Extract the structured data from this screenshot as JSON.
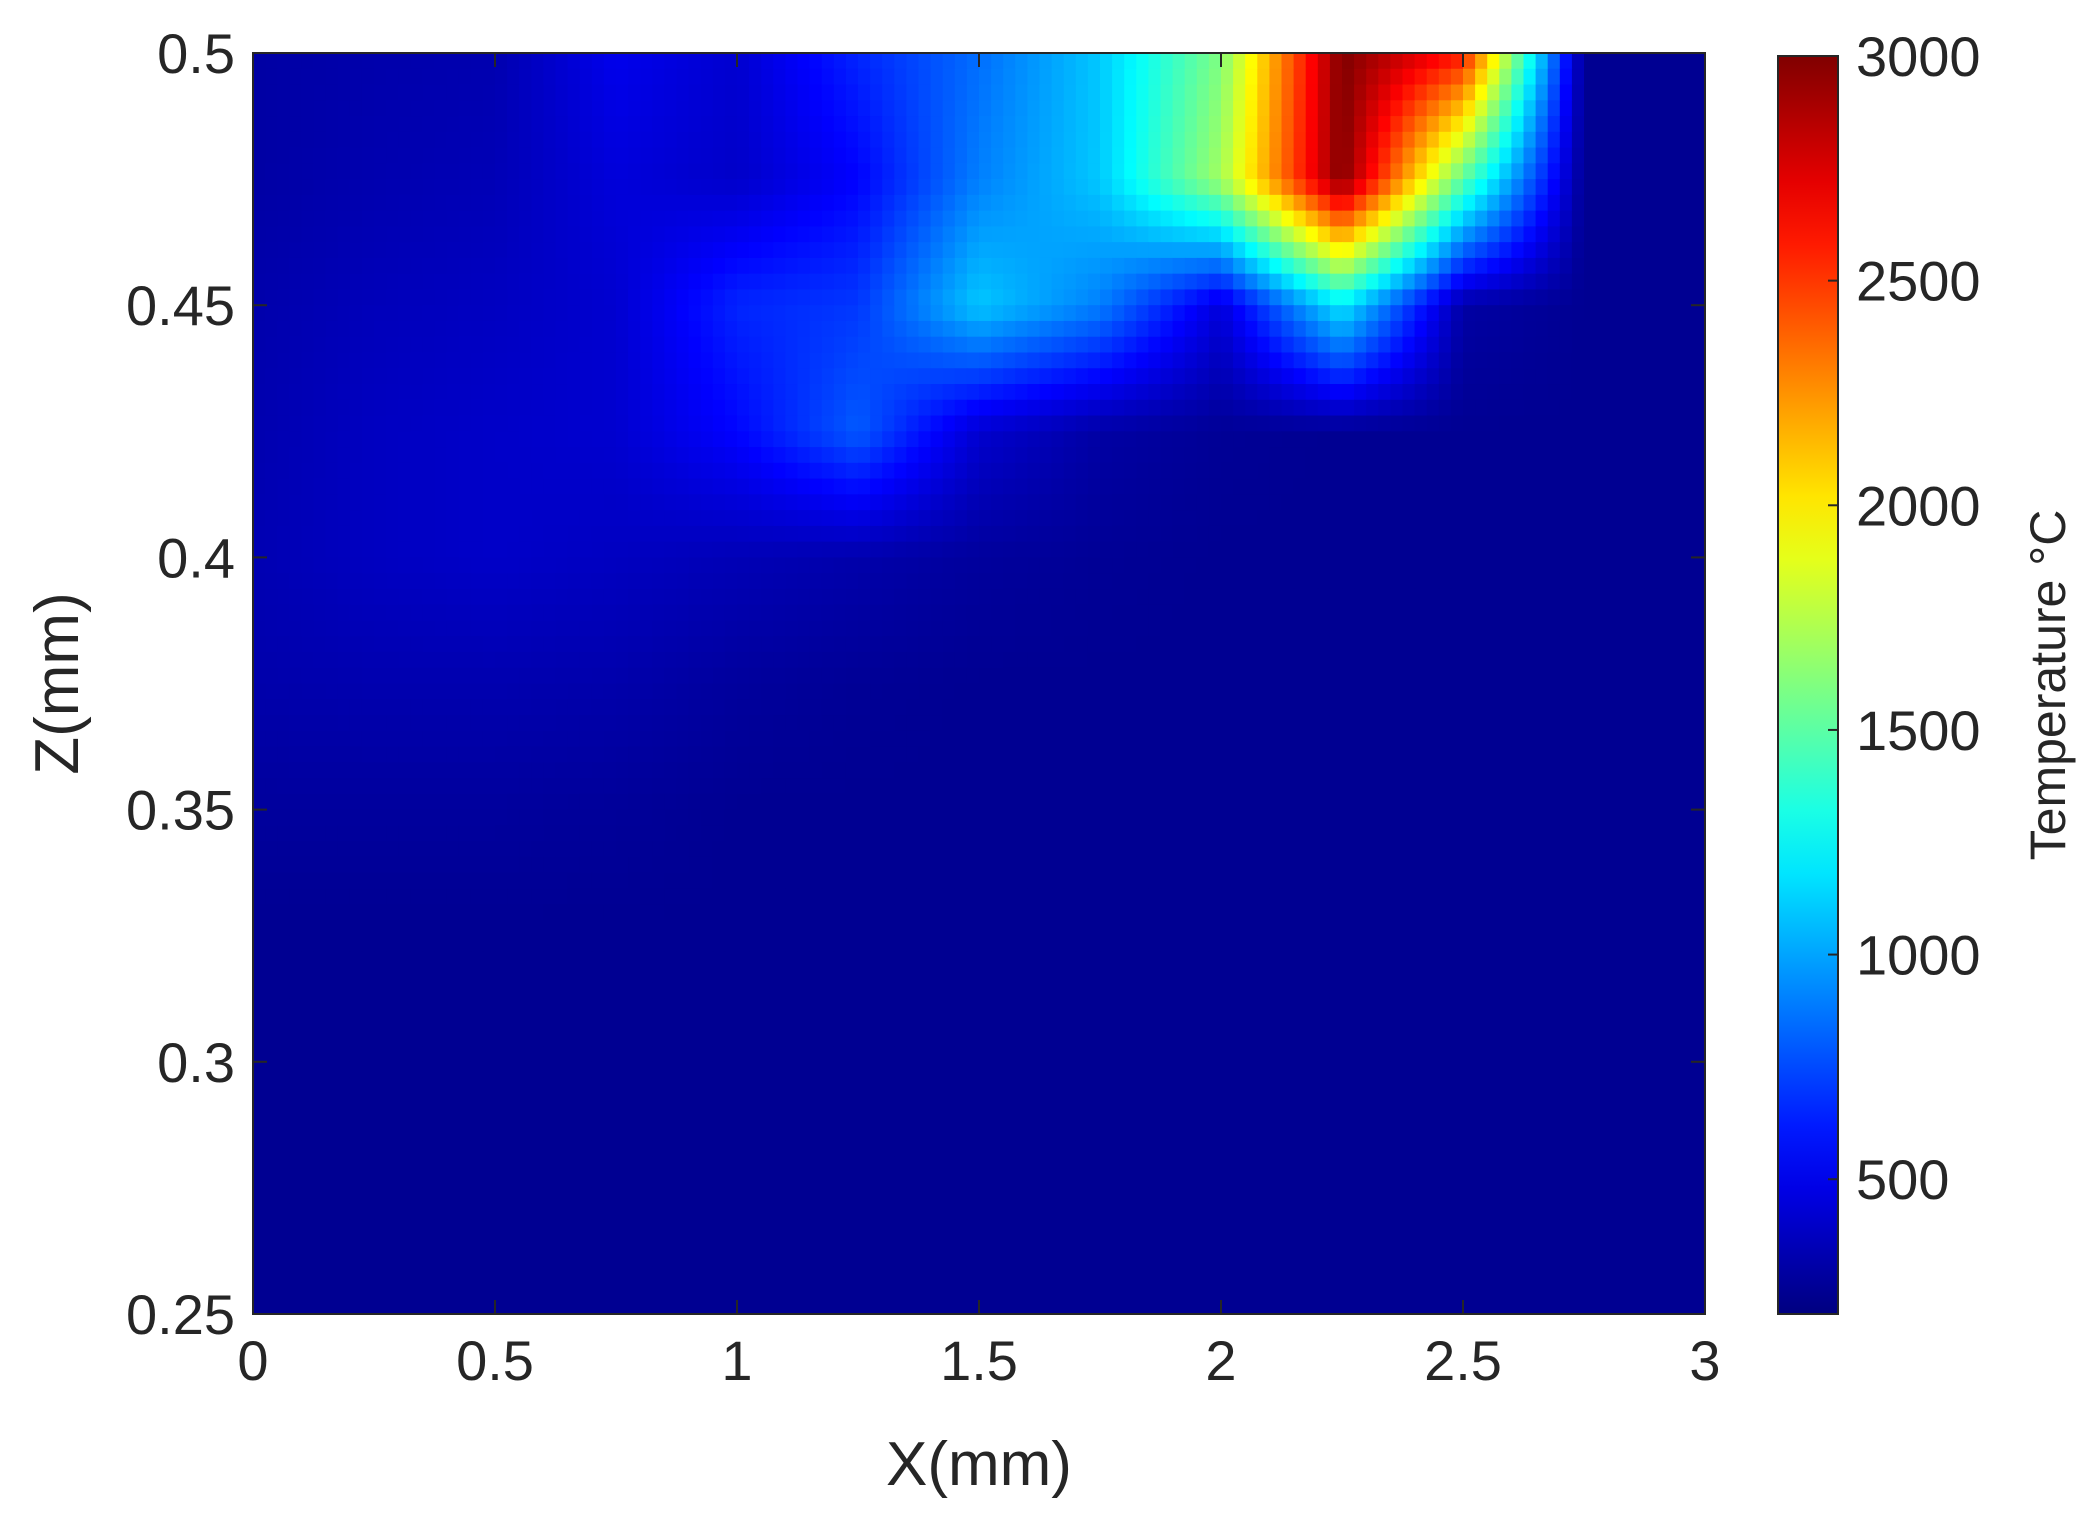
{
  "chart_data": {
    "type": "heatmap",
    "title": "",
    "xlabel": "X(mm)",
    "ylabel": "Z(mm)",
    "xlim": [
      0,
      3
    ],
    "ylim": [
      0.25,
      0.5
    ],
    "x_ticks": [
      "0",
      "0.5",
      "1",
      "1.5",
      "2",
      "2.5",
      "3"
    ],
    "y_ticks": [
      "0.25",
      "0.3",
      "0.35",
      "0.4",
      "0.45",
      "0.5"
    ],
    "colorbar": {
      "label": "Temperature °C",
      "range": [
        200,
        3000
      ],
      "ticks": [
        "500",
        "1000",
        "1500",
        "2000",
        "2500",
        "3000"
      ],
      "colormap": "jet"
    },
    "grid": false,
    "x": [
      0,
      0.25,
      0.5,
      0.75,
      1,
      1.25,
      1.5,
      1.75,
      2,
      2.25,
      2.5,
      2.75,
      3
    ],
    "z": [
      0.25,
      0.275,
      0.3,
      0.325,
      0.35,
      0.375,
      0.4,
      0.425,
      0.45,
      0.475,
      0.5
    ],
    "values": [
      [
        250,
        250,
        250,
        250,
        250,
        250,
        250,
        250,
        250,
        250,
        250,
        250,
        250
      ],
      [
        250,
        250,
        250,
        250,
        250,
        250,
        250,
        250,
        250,
        250,
        250,
        250,
        250
      ],
      [
        250,
        250,
        250,
        250,
        250,
        250,
        250,
        250,
        250,
        250,
        250,
        250,
        250
      ],
      [
        250,
        250,
        250,
        250,
        250,
        250,
        250,
        250,
        250,
        250,
        250,
        250,
        250
      ],
      [
        280,
        280,
        280,
        270,
        250,
        250,
        250,
        250,
        250,
        250,
        250,
        250,
        250
      ],
      [
        320,
        330,
        330,
        320,
        280,
        260,
        250,
        250,
        250,
        250,
        250,
        250,
        250
      ],
      [
        340,
        380,
        400,
        380,
        350,
        320,
        280,
        260,
        250,
        250,
        250,
        250,
        250
      ],
      [
        330,
        380,
        400,
        420,
        560,
        800,
        420,
        300,
        260,
        250,
        250,
        250,
        250
      ],
      [
        320,
        360,
        380,
        420,
        650,
        700,
        1100,
        900,
        450,
        1200,
        300,
        250,
        250
      ],
      [
        300,
        330,
        350,
        450,
        400,
        550,
        900,
        1100,
        1700,
        3000,
        1500,
        250,
        250
      ],
      [
        300,
        320,
        330,
        500,
        420,
        650,
        850,
        1100,
        1600,
        3000,
        2600,
        250,
        250
      ]
    ]
  }
}
